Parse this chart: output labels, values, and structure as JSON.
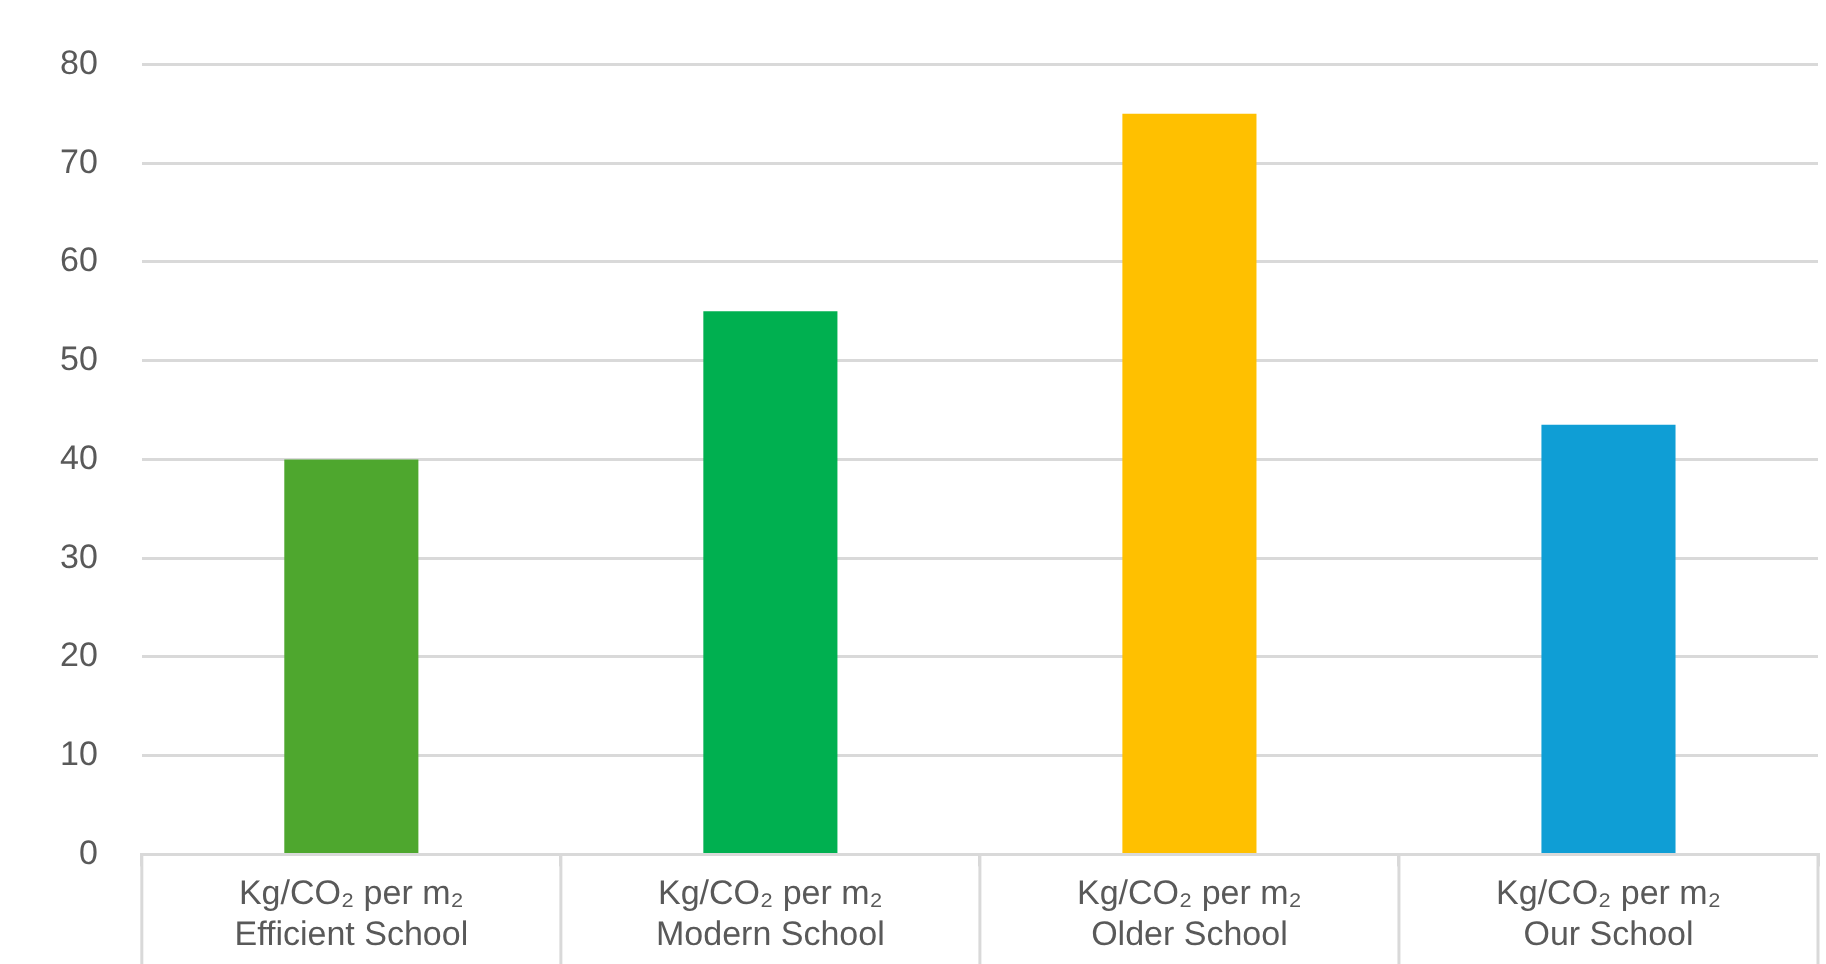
{
  "chart_data": {
    "type": "bar",
    "categories": [
      "Kg/CO₂ per m₂\nEfficient School",
      "Kg/CO₂ per m₂\nModern School",
      "Kg/CO₂ per m₂\nOlder School",
      "Kg/CO₂ per m₂\nOur School"
    ],
    "values": [
      40,
      55,
      75,
      43.5
    ],
    "colors": [
      "#4ea72e",
      "#00b050",
      "#ffc000",
      "#0f9ed5"
    ],
    "ylim": [
      0,
      80
    ],
    "yticks": [
      0,
      10,
      20,
      30,
      40,
      50,
      60,
      70,
      80
    ],
    "grid": "y",
    "legend": false
  }
}
